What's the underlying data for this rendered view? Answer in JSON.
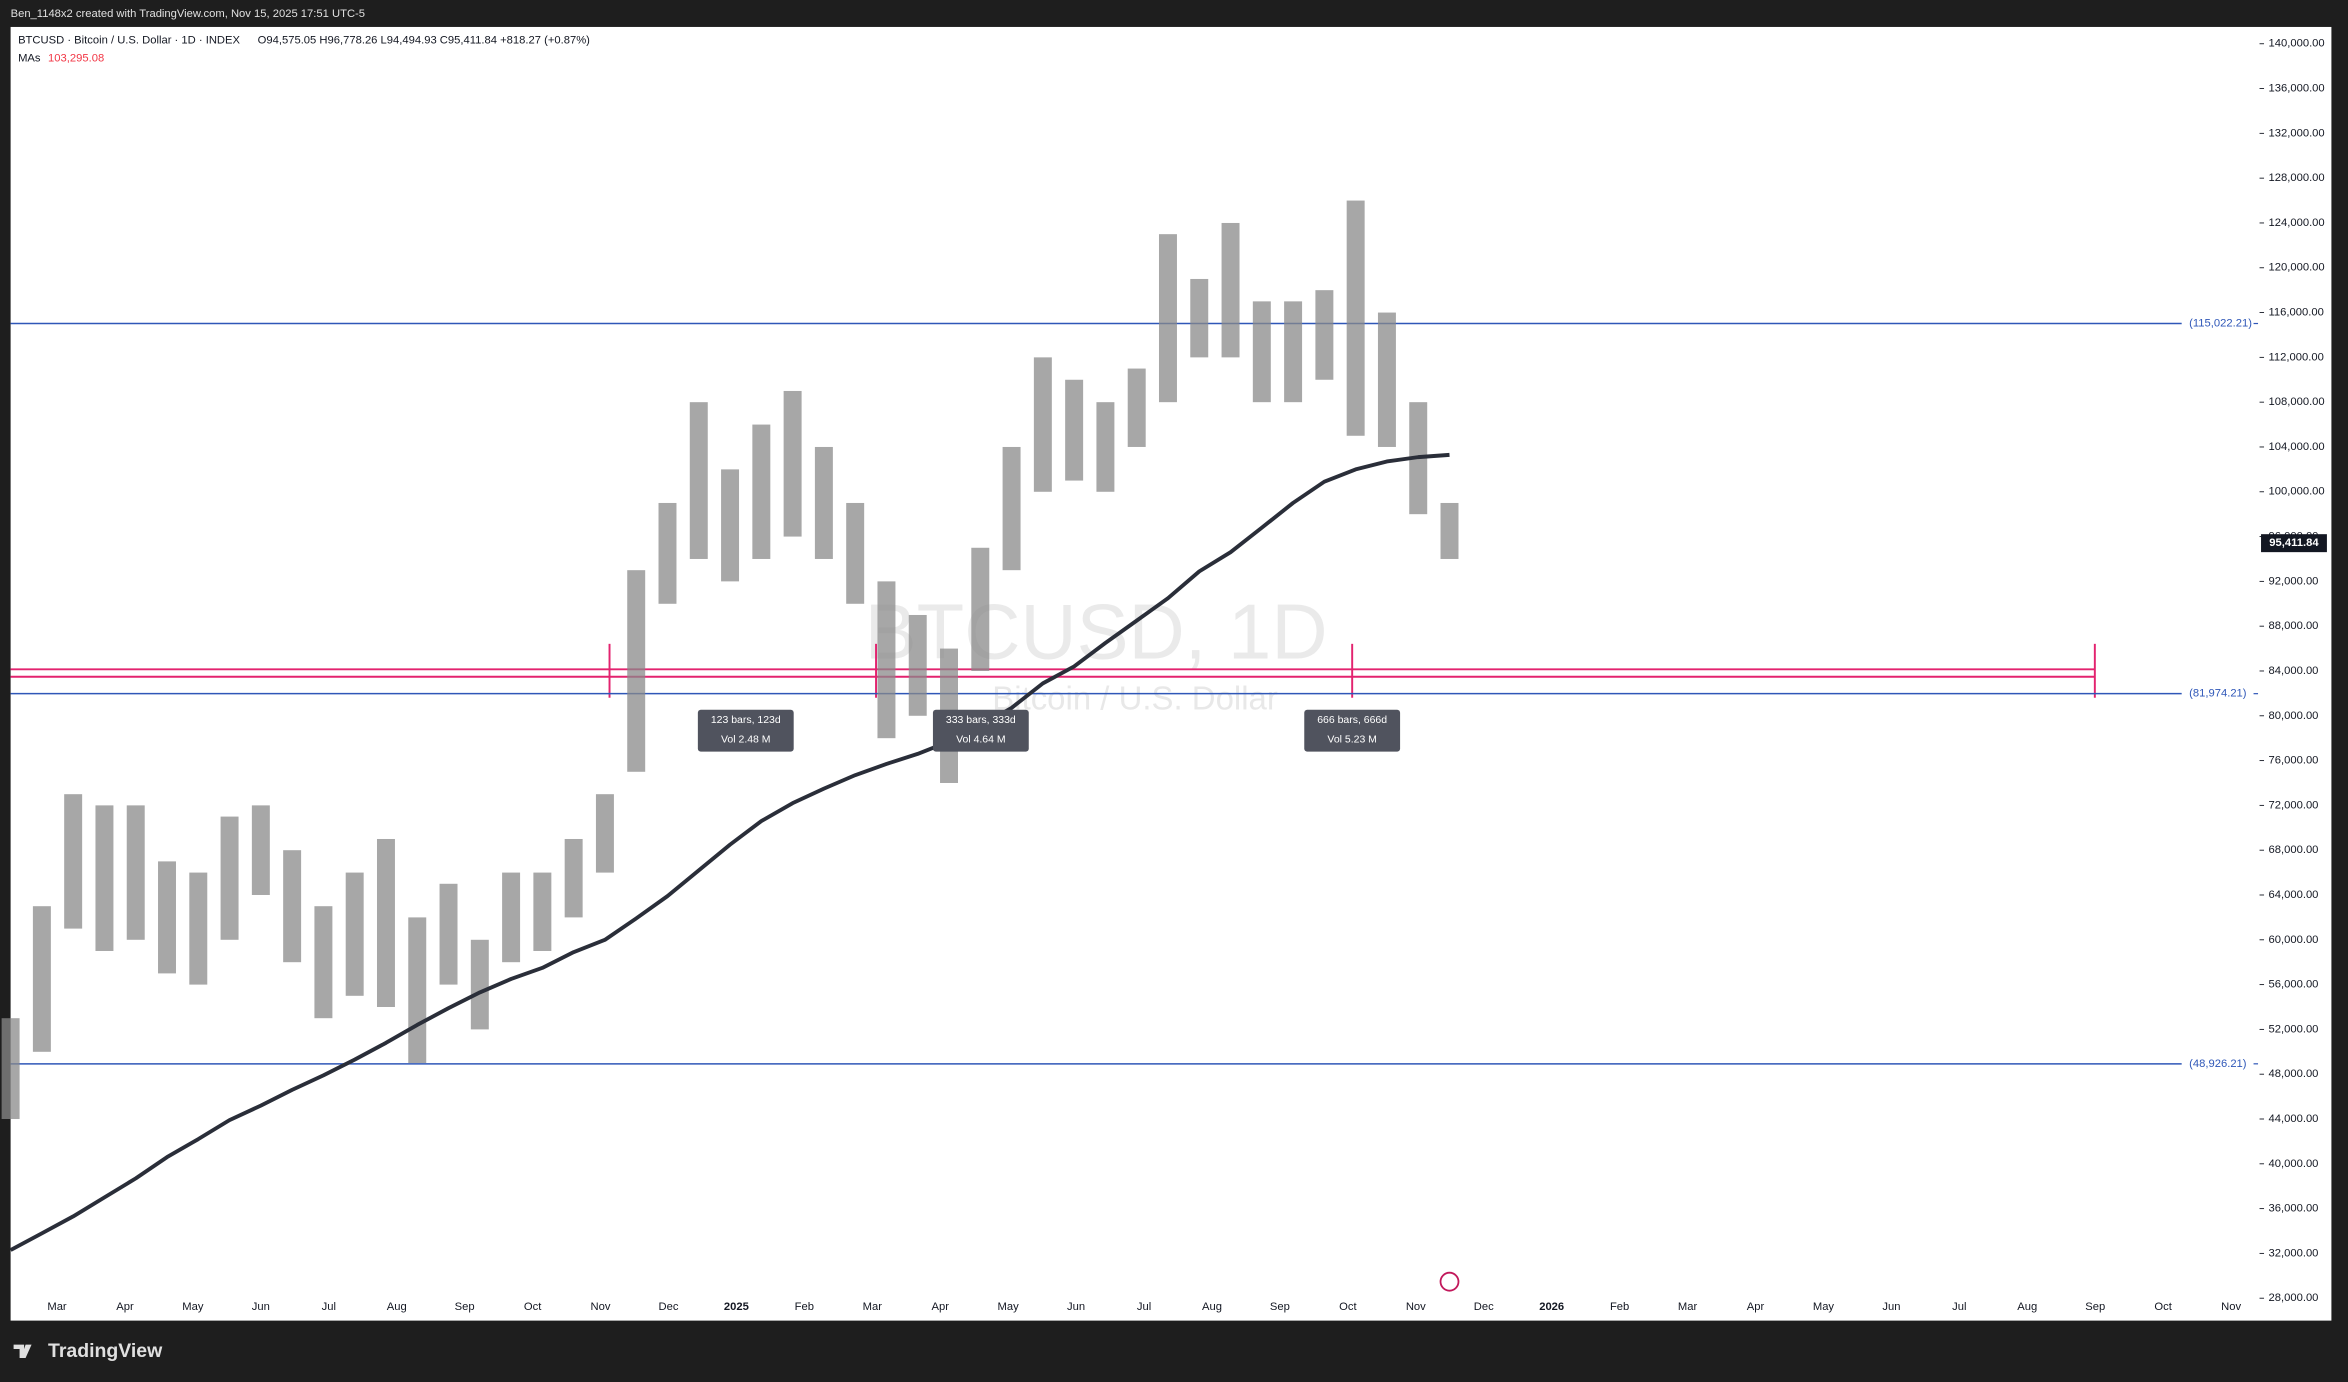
{
  "header": {
    "credit": "Ben_1148x2 created with TradingView.com, Nov 15, 2025 17:51 UTC-5",
    "logo": "TradingView"
  },
  "chart_data": {
    "type": "bar",
    "title": "BTCUSD · Bitcoin / U.S. Dollar · 1D · INDEX",
    "ohlc_text": "O94,575.05  H96,778.26  L94,494.93  C95,411.84  +818.27 (+0.87%)",
    "watermark": "BTCUSD, 1D",
    "watermark_sub": "Bitcoin / U.S. Dollar",
    "color": "#8a8a8a",
    "highs": [
      53000,
      63000,
      73000,
      72000,
      72000,
      67000,
      66000,
      71000,
      72000,
      68000,
      63000,
      66000,
      69000,
      62000,
      65000,
      60000,
      66000,
      66000,
      69000,
      73000,
      93000,
      99000,
      108000,
      102000,
      106000,
      109000,
      104000,
      99000,
      92000,
      89000,
      86000,
      95000,
      104000,
      112000,
      110000,
      108000,
      111000,
      123000,
      119000,
      124000,
      117000,
      117000,
      118000,
      126000,
      116000,
      108000,
      99000
    ],
    "lows": [
      44000,
      50000,
      61000,
      59000,
      60000,
      57000,
      56000,
      60000,
      64000,
      58000,
      53000,
      55000,
      54000,
      49000,
      56000,
      52000,
      58000,
      59000,
      62000,
      66000,
      75000,
      90000,
      94000,
      92000,
      94000,
      96000,
      94000,
      90000,
      78000,
      80000,
      74000,
      84000,
      93000,
      100000,
      101000,
      100000,
      104000,
      108000,
      112000,
      112000,
      108000,
      108000,
      110000,
      105000,
      104000,
      98000,
      94000
    ],
    "ma": {
      "name": "MAs",
      "color": "#2a2e39",
      "last": {
        "value": 103295.08,
        "label": "103,295.08"
      },
      "values": [
        32300,
        33800,
        35300,
        37000,
        38700,
        40600,
        42200,
        43900,
        45200,
        46600,
        47900,
        49300,
        50800,
        52400,
        53900,
        55300,
        56500,
        57500,
        58900,
        60000,
        61900,
        63900,
        66200,
        68500,
        70600,
        72200,
        73500,
        74700,
        75700,
        76600,
        77700,
        79100,
        80700,
        82900,
        84400,
        86500,
        88500,
        90500,
        92900,
        94600,
        96800,
        99000,
        100900,
        102000,
        102700,
        103100,
        103295.08
      ]
    },
    "last_price": {
      "value": 95411.84,
      "label": "95,411.84"
    },
    "levels": [
      {
        "value": 115022.21,
        "label": "(115,022.21)",
        "color": "#2f57b8"
      },
      {
        "value": 81974.21,
        "label": "(81,974.21)",
        "color": "#2f57b8"
      },
      {
        "value": 48926.21,
        "label": "(48,926.21)",
        "color": "#2f57b8"
      }
    ],
    "measures": [
      {
        "bars": "123 bars, 123d",
        "vol": "Vol 2.48 M"
      },
      {
        "bars": "333 bars, 333d",
        "vol": "Vol 4.64 M"
      },
      {
        "bars": "666 bars, 666d",
        "vol": "Vol 5.23 M"
      }
    ],
    "xticks": [
      "Mar",
      "Apr",
      "May",
      "Jun",
      "Jul",
      "Aug",
      "Sep",
      "Oct",
      "Nov",
      "Dec",
      "2025",
      "Feb",
      "Mar",
      "Apr",
      "May",
      "Jun",
      "Jul",
      "Aug",
      "Sep",
      "Oct",
      "Nov",
      "Dec",
      "2026",
      "Feb",
      "Mar",
      "Apr",
      "May",
      "Jun",
      "Jul",
      "Aug",
      "Sep",
      "Oct",
      "Nov"
    ],
    "ylim": [
      26000,
      141500
    ],
    "yticks": [
      {
        "value": 28000,
        "label": "28,000.00"
      },
      {
        "value": 32000,
        "label": "32,000.00"
      },
      {
        "value": 36000,
        "label": "36,000.00"
      },
      {
        "value": 40000,
        "label": "40,000.00"
      },
      {
        "value": 44000,
        "label": "44,000.00"
      },
      {
        "value": 48000,
        "label": "48,000.00"
      },
      {
        "value": 52000,
        "label": "52,000.00"
      },
      {
        "value": 56000,
        "label": "56,000.00"
      },
      {
        "value": 60000,
        "label": "60,000.00"
      },
      {
        "value": 64000,
        "label": "64,000.00"
      },
      {
        "value": 68000,
        "label": "68,000.00"
      },
      {
        "value": 72000,
        "label": "72,000.00"
      },
      {
        "value": 76000,
        "label": "76,000.00"
      },
      {
        "value": 80000,
        "label": "80,000.00"
      },
      {
        "value": 84000,
        "label": "84,000.00"
      },
      {
        "value": 88000,
        "label": "88,000.00"
      },
      {
        "value": 92000,
        "label": "92,000.00"
      },
      {
        "value": 96000,
        "label": "96,000.00"
      },
      {
        "value": 100000,
        "label": "100,000.00"
      },
      {
        "value": 104000,
        "label": "104,000.00"
      },
      {
        "value": 108000,
        "label": "108,000.00"
      },
      {
        "value": 112000,
        "label": "112,000.00"
      },
      {
        "value": 116000,
        "label": "116,000.00"
      },
      {
        "value": 120000,
        "label": "120,000.00"
      },
      {
        "value": 124000,
        "label": "124,000.00"
      },
      {
        "value": 128000,
        "label": "128,000.00"
      },
      {
        "value": 132000,
        "label": "132,000.00"
      },
      {
        "value": 136000,
        "label": "136,000.00"
      },
      {
        "value": 140000,
        "label": "140,000.00"
      }
    ]
  }
}
